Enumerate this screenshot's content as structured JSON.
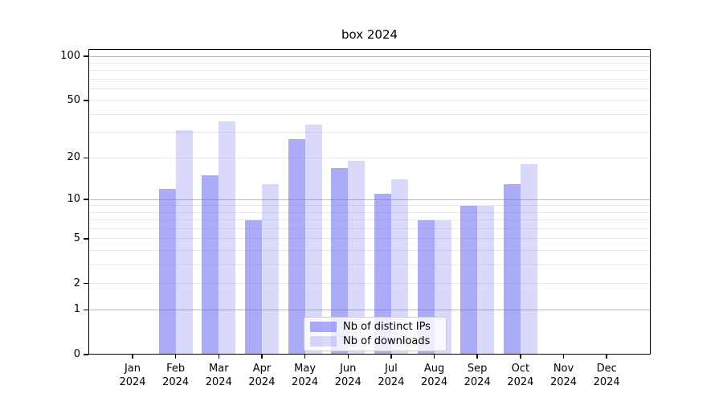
{
  "title": "box 2024",
  "colors": {
    "ips_bar": "rgba(102,102,240,0.55)",
    "downloads_bar": "rgba(102,102,240,0.25)",
    "major_gridline": "#b9b9b9",
    "minor_gridline": "#eaeaea",
    "axis": "#000000",
    "legend_border": "#cccccc"
  },
  "y_axis": {
    "labeled_ticks": [
      100,
      50,
      20,
      10,
      5,
      2,
      1,
      0
    ],
    "major_gridline_values": [
      1,
      10,
      100
    ],
    "minor_gridline_values": [
      2,
      3,
      4,
      5,
      6,
      7,
      8,
      9,
      20,
      30,
      40,
      50,
      60,
      70,
      80,
      90
    ]
  },
  "x_axis": {
    "year_line": "2024",
    "month_labels": [
      "Jan",
      "Feb",
      "Mar",
      "Apr",
      "May",
      "Jun",
      "Jul",
      "Aug",
      "Sep",
      "Oct",
      "Nov",
      "Dec"
    ]
  },
  "legend": {
    "rows": [
      {
        "label": "Nb of distinct IPs",
        "series_key": "ips"
      },
      {
        "label": "Nb of downloads",
        "series_key": "downloads"
      }
    ]
  },
  "chart_data": {
    "type": "bar",
    "title": "box 2024",
    "categories": [
      "Jan 2024",
      "Feb 2024",
      "Mar 2024",
      "Apr 2024",
      "May 2024",
      "Jun 2024",
      "Jul 2024",
      "Aug 2024",
      "Sep 2024",
      "Oct 2024",
      "Nov 2024",
      "Dec 2024"
    ],
    "series": [
      {
        "name": "Nb of distinct IPs",
        "values": [
          0,
          12,
          15,
          7,
          27,
          17,
          11,
          7,
          9,
          13,
          0,
          0
        ]
      },
      {
        "name": "Nb of downloads",
        "values": [
          0,
          31,
          36,
          13,
          34,
          19,
          14,
          7,
          9,
          18,
          0,
          0
        ]
      }
    ],
    "xlabel": "",
    "ylabel": "",
    "yscale": "log(1+x)",
    "ylim": [
      0,
      112
    ],
    "yticks": [
      0,
      1,
      2,
      5,
      10,
      20,
      50,
      100
    ],
    "grid": "horizontal",
    "legend_position": "lower center"
  }
}
